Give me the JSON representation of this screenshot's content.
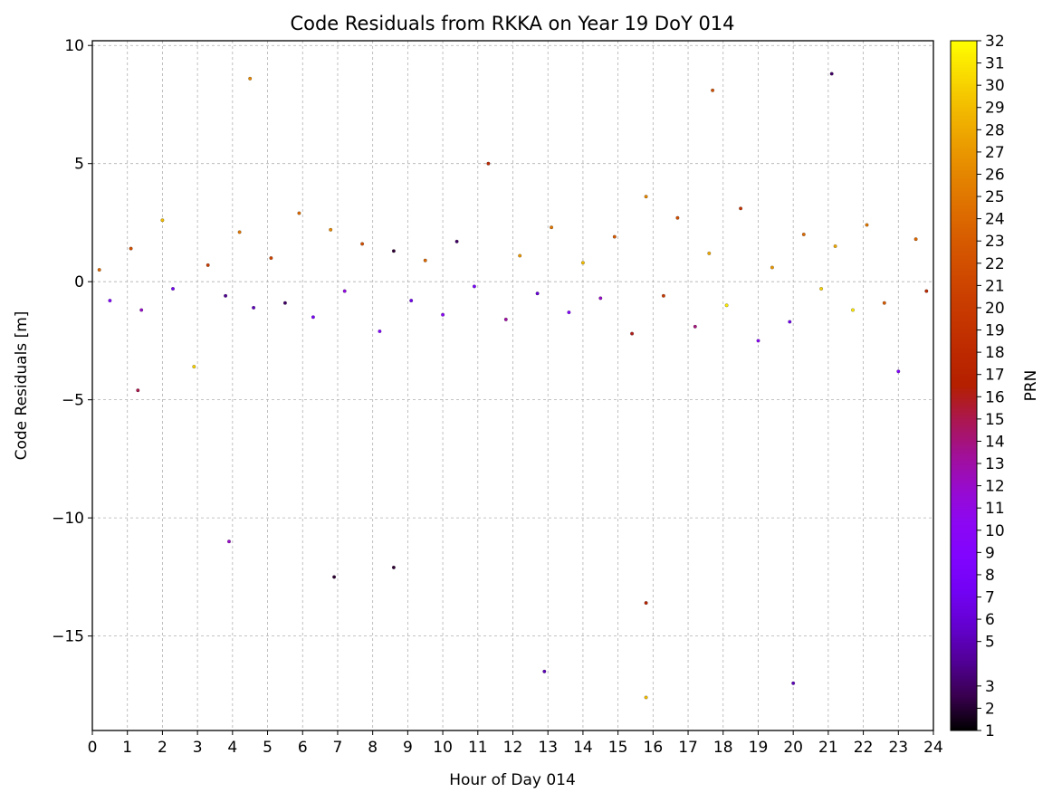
{
  "chart_data": {
    "type": "scatter",
    "title": "Code Residuals from RKKA on Year 19 DoY 014",
    "xlabel": "Hour of Day 014",
    "ylabel": "Code Residuals [m]",
    "xlim": [
      0,
      24
    ],
    "ylim": [
      -19,
      10.2
    ],
    "x_ticks": [
      0,
      1,
      2,
      3,
      4,
      5,
      6,
      7,
      8,
      9,
      10,
      11,
      12,
      13,
      14,
      15,
      16,
      17,
      18,
      19,
      20,
      21,
      22,
      23,
      24
    ],
    "x_tick_labels": [
      "0",
      "1",
      "2",
      "3",
      "4",
      "5",
      "6",
      "7",
      "8",
      "9",
      "10",
      "11",
      "12",
      "13",
      "14",
      "15",
      "16",
      "17",
      "18",
      "19",
      "20",
      "21",
      "22",
      "23",
      "24"
    ],
    "y_ticks": [
      10,
      5,
      0,
      -5,
      -10,
      -15
    ],
    "y_tick_labels": [
      "10",
      "5",
      "0",
      "−5",
      "−10",
      "−15"
    ],
    "grid": true,
    "colorbar": {
      "label": "PRN",
      "colormap": "gnuplot",
      "range": [
        1,
        32
      ],
      "ticks": [
        1,
        2,
        3,
        5,
        6,
        7,
        8,
        9,
        10,
        11,
        12,
        13,
        14,
        15,
        16,
        17,
        18,
        19,
        20,
        21,
        22,
        23,
        24,
        25,
        26,
        27,
        28,
        29,
        30,
        31,
        32
      ],
      "tick_labels": [
        "1",
        "2",
        "3",
        "5",
        "6",
        "7",
        "8",
        "9",
        "10",
        "11",
        "12",
        "13",
        "14",
        "15",
        "16",
        "17",
        "18",
        "19",
        "20",
        "21",
        "22",
        "23",
        "24",
        "25",
        "26",
        "27",
        "28",
        "29",
        "30",
        "31",
        "32"
      ]
    },
    "points": [
      [
        0.2,
        0.5,
        24
      ],
      [
        0.5,
        -0.8,
        9
      ],
      [
        1.1,
        1.4,
        22
      ],
      [
        1.4,
        -1.2,
        12
      ],
      [
        2.0,
        2.6,
        29
      ],
      [
        2.3,
        -0.3,
        7
      ],
      [
        2.9,
        -3.6,
        30
      ],
      [
        3.3,
        0.7,
        20
      ],
      [
        3.8,
        -0.6,
        4
      ],
      [
        4.2,
        2.1,
        25
      ],
      [
        4.6,
        -1.1,
        5
      ],
      [
        5.1,
        1.0,
        21
      ],
      [
        5.5,
        -0.9,
        3
      ],
      [
        5.9,
        2.9,
        24
      ],
      [
        6.3,
        -1.5,
        8
      ],
      [
        6.8,
        2.2,
        26
      ],
      [
        7.2,
        -0.4,
        11
      ],
      [
        7.7,
        1.6,
        22
      ],
      [
        8.2,
        -2.1,
        9
      ],
      [
        8.6,
        1.3,
        2
      ],
      [
        9.1,
        -0.8,
        7
      ],
      [
        9.5,
        0.9,
        24
      ],
      [
        10.0,
        -1.4,
        10
      ],
      [
        10.4,
        1.7,
        3
      ],
      [
        10.9,
        -0.2,
        8
      ],
      [
        11.3,
        5.0,
        18
      ],
      [
        11.8,
        -1.6,
        13
      ],
      [
        12.2,
        1.1,
        27
      ],
      [
        12.7,
        -0.5,
        6
      ],
      [
        13.1,
        2.3,
        25
      ],
      [
        13.6,
        -1.3,
        9
      ],
      [
        14.0,
        0.8,
        29
      ],
      [
        14.5,
        -0.7,
        12
      ],
      [
        14.9,
        1.9,
        23
      ],
      [
        15.4,
        -2.2,
        16
      ],
      [
        15.8,
        3.6,
        26
      ],
      [
        16.3,
        -0.6,
        20
      ],
      [
        16.7,
        2.7,
        22
      ],
      [
        17.2,
        -1.9,
        14
      ],
      [
        17.6,
        1.2,
        28
      ],
      [
        18.1,
        -1.0,
        31
      ],
      [
        18.5,
        3.1,
        19
      ],
      [
        19.0,
        -2.5,
        10
      ],
      [
        19.4,
        0.6,
        27
      ],
      [
        19.9,
        -1.7,
        7
      ],
      [
        20.3,
        2.0,
        24
      ],
      [
        20.8,
        -0.3,
        30
      ],
      [
        21.2,
        1.5,
        28
      ],
      [
        21.7,
        -1.2,
        31
      ],
      [
        22.1,
        2.4,
        25
      ],
      [
        22.6,
        -0.9,
        23
      ],
      [
        23.0,
        -3.8,
        9
      ],
      [
        23.5,
        1.8,
        24
      ],
      [
        23.8,
        -0.4,
        18
      ],
      [
        1.3,
        -4.6,
        15
      ],
      [
        3.9,
        -11.0,
        12
      ],
      [
        6.9,
        -12.5,
        2
      ],
      [
        8.6,
        -12.1,
        2
      ],
      [
        12.9,
        -16.5,
        5
      ],
      [
        15.8,
        -13.6,
        17
      ],
      [
        15.8,
        -17.6,
        29
      ],
      [
        20.0,
        -17.0,
        5
      ],
      [
        4.5,
        8.6,
        26
      ],
      [
        21.1,
        8.8,
        3
      ],
      [
        17.7,
        8.1,
        22
      ]
    ]
  }
}
